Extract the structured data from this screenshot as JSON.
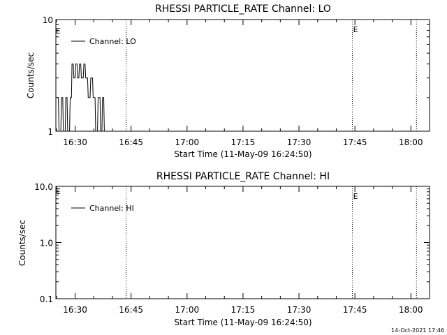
{
  "chart_data": [
    {
      "type": "line",
      "title": "RHESSI PARTICLE_RATE Channel: LO",
      "xlabel": "Start Time (11-May-09 16:24:50)",
      "ylabel": "Counts/sec",
      "yscale": "log",
      "ylim": [
        1,
        10
      ],
      "xlim": [
        "16:24:50",
        "18:05:00"
      ],
      "x_ticks": [
        "16:30",
        "16:45",
        "17:00",
        "17:15",
        "17:30",
        "17:45",
        "18:00"
      ],
      "y_ticks": [
        "1",
        "10"
      ],
      "legend": {
        "placement": "top-left",
        "entries": [
          "Channel: LO"
        ]
      },
      "event_lines": [
        {
          "time": "16:43:40",
          "label": ""
        },
        {
          "time": "17:44:20",
          "label": "E"
        },
        {
          "time": "18:01:30",
          "label": ""
        }
      ],
      "left_marker": "E",
      "series": [
        {
          "name": "Channel: LO",
          "x": [
            "16:25:00",
            "16:25:30",
            "16:25:40",
            "16:26:10",
            "16:26:20",
            "16:26:40",
            "16:26:50",
            "16:27:20",
            "16:27:30",
            "16:27:50",
            "16:28:00",
            "16:28:30",
            "16:28:40",
            "16:29:00",
            "16:29:10",
            "16:29:30",
            "16:29:40",
            "16:30:00",
            "16:30:10",
            "16:30:30",
            "16:30:40",
            "16:31:00",
            "16:31:10",
            "16:31:30",
            "16:31:40",
            "16:32:10",
            "16:32:20",
            "16:32:40",
            "16:32:50",
            "16:33:20",
            "16:33:30",
            "16:34:00",
            "16:34:10",
            "16:34:40",
            "16:34:50",
            "16:35:20",
            "16:35:30",
            "16:36:00",
            "16:36:10",
            "16:36:40",
            "16:36:50",
            "16:37:10",
            "16:37:20",
            "16:37:40",
            "16:37:50",
            "16:38:10"
          ],
          "values": [
            2,
            2,
            1,
            1,
            2,
            2,
            1,
            1,
            2,
            2,
            1,
            1,
            2,
            2,
            4,
            4,
            3,
            3,
            4,
            4,
            3,
            3,
            4,
            4,
            3,
            3,
            4,
            4,
            3,
            3,
            2,
            2,
            3,
            3,
            2,
            2,
            1,
            1,
            2,
            2,
            1,
            1,
            2,
            2,
            1,
            1
          ]
        }
      ]
    },
    {
      "type": "line",
      "title": "RHESSI PARTICLE_RATE Channel: HI",
      "xlabel": "Start Time (11-May-09 16:24:50)",
      "ylabel": "Counts/sec",
      "yscale": "log",
      "ylim": [
        0.1,
        10
      ],
      "xlim": [
        "16:24:50",
        "18:05:00"
      ],
      "x_ticks": [
        "16:30",
        "16:45",
        "17:00",
        "17:15",
        "17:30",
        "17:45",
        "18:00"
      ],
      "y_ticks": [
        "0.1",
        "1.0",
        "10.0"
      ],
      "legend": {
        "placement": "top-left",
        "entries": [
          "Channel: HI"
        ]
      },
      "event_lines": [
        {
          "time": "16:43:40",
          "label": ""
        },
        {
          "time": "17:44:20",
          "label": "E"
        },
        {
          "time": "18:01:30",
          "label": ""
        }
      ],
      "left_marker": "E",
      "series": [
        {
          "name": "Channel: HI",
          "x": [],
          "values": []
        }
      ]
    }
  ],
  "footer": {
    "timestamp": "14-Oct-2021 17:46"
  }
}
